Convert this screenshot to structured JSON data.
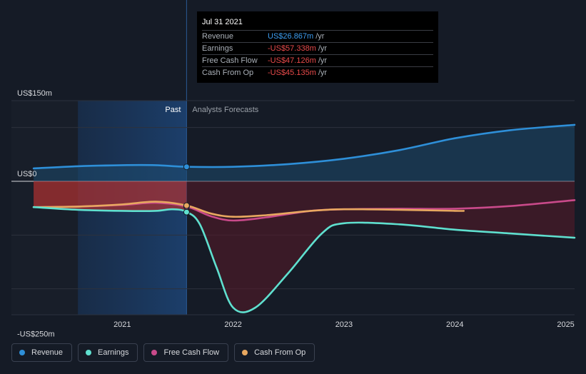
{
  "colors": {
    "revenue": "#2e8fd8",
    "earnings": "#5fe0cf",
    "free_cash_flow": "#c94a8a",
    "cash_from_op": "#e8a860",
    "negative_value": "#e84a4a",
    "positive_value": "#3d9df0"
  },
  "chart_data": {
    "type": "line",
    "x_unit": "year",
    "xlim": [
      2020.0,
      2025.08
    ],
    "ylim": [
      -250,
      150
    ],
    "y_axis_labels": [
      {
        "label": "US$150m",
        "value": 150
      },
      {
        "label": "US$0",
        "value": 0
      },
      {
        "label": "-US$250m",
        "value": -250
      }
    ],
    "gridlines": [
      150,
      100,
      0,
      -100,
      -200
    ],
    "x_ticks": [
      {
        "label": "2021",
        "value": 2021.0
      },
      {
        "label": "2022",
        "value": 2022.0
      },
      {
        "label": "2023",
        "value": 2023.0
      },
      {
        "label": "2024",
        "value": 2024.0
      },
      {
        "label": "2025",
        "value": 2025.0
      }
    ],
    "past_label": "Past",
    "forecast_label": "Analysts Forecasts",
    "past_start": 2020.6,
    "divider_x": 2021.58,
    "series": [
      {
        "name": "Revenue",
        "key": "revenue",
        "points": [
          [
            2020.2,
            24
          ],
          [
            2020.6,
            28
          ],
          [
            2021.0,
            30
          ],
          [
            2021.3,
            30
          ],
          [
            2021.58,
            27
          ],
          [
            2022.0,
            27
          ],
          [
            2022.5,
            32
          ],
          [
            2023.0,
            42
          ],
          [
            2023.5,
            58
          ],
          [
            2024.0,
            80
          ],
          [
            2024.5,
            95
          ],
          [
            2025.08,
            105
          ]
        ],
        "markers": [
          [
            2021.58,
            26.9
          ]
        ]
      },
      {
        "name": "Earnings",
        "key": "earnings",
        "points": [
          [
            2020.2,
            -48
          ],
          [
            2020.6,
            -53
          ],
          [
            2021.0,
            -55
          ],
          [
            2021.3,
            -55
          ],
          [
            2021.45,
            -52
          ],
          [
            2021.58,
            -57
          ],
          [
            2021.7,
            -80
          ],
          [
            2021.85,
            -160
          ],
          [
            2022.0,
            -235
          ],
          [
            2022.2,
            -235
          ],
          [
            2022.5,
            -170
          ],
          [
            2022.8,
            -97
          ],
          [
            2023.0,
            -78
          ],
          [
            2023.5,
            -80
          ],
          [
            2024.0,
            -90
          ],
          [
            2024.5,
            -97
          ],
          [
            2025.08,
            -105
          ]
        ],
        "markers": [
          [
            2021.58,
            -57.3
          ]
        ]
      },
      {
        "name": "Free Cash Flow",
        "key": "free_cash_flow",
        "points": [
          [
            2020.2,
            -48
          ],
          [
            2020.6,
            -47
          ],
          [
            2021.0,
            -44
          ],
          [
            2021.3,
            -40
          ],
          [
            2021.58,
            -47
          ],
          [
            2021.8,
            -65
          ],
          [
            2022.0,
            -73
          ],
          [
            2022.3,
            -67
          ],
          [
            2022.7,
            -55
          ],
          [
            2023.0,
            -52
          ],
          [
            2023.5,
            -51
          ],
          [
            2024.0,
            -51
          ],
          [
            2024.5,
            -46
          ],
          [
            2025.08,
            -35
          ]
        ],
        "markers": [
          [
            2021.58,
            -47.1
          ]
        ]
      },
      {
        "name": "Cash From Op",
        "key": "cash_from_op",
        "points": [
          [
            2020.2,
            -48
          ],
          [
            2020.6,
            -47
          ],
          [
            2021.0,
            -43
          ],
          [
            2021.3,
            -38
          ],
          [
            2021.58,
            -45
          ],
          [
            2021.8,
            -60
          ],
          [
            2022.0,
            -66
          ],
          [
            2022.3,
            -63
          ],
          [
            2022.7,
            -55
          ],
          [
            2023.0,
            -52
          ],
          [
            2023.5,
            -53
          ],
          [
            2024.0,
            -55
          ],
          [
            2024.08,
            -55
          ]
        ],
        "markers": [
          [
            2021.58,
            -45.1
          ]
        ]
      }
    ],
    "legend_placement": "bottom-left"
  },
  "tooltip": {
    "date": "Jul 31 2021",
    "rows": [
      {
        "name": "Revenue",
        "value": "US$26.867m",
        "unit": "/yr",
        "sign": "positive"
      },
      {
        "name": "Earnings",
        "value": "-US$57.338m",
        "unit": "/yr",
        "sign": "negative"
      },
      {
        "name": "Free Cash Flow",
        "value": "-US$47.126m",
        "unit": "/yr",
        "sign": "negative"
      },
      {
        "name": "Cash From Op",
        "value": "-US$45.135m",
        "unit": "/yr",
        "sign": "negative"
      }
    ]
  },
  "legend": [
    {
      "label": "Revenue",
      "key": "revenue"
    },
    {
      "label": "Earnings",
      "key": "earnings"
    },
    {
      "label": "Free Cash Flow",
      "key": "free_cash_flow"
    },
    {
      "label": "Cash From Op",
      "key": "cash_from_op"
    }
  ]
}
